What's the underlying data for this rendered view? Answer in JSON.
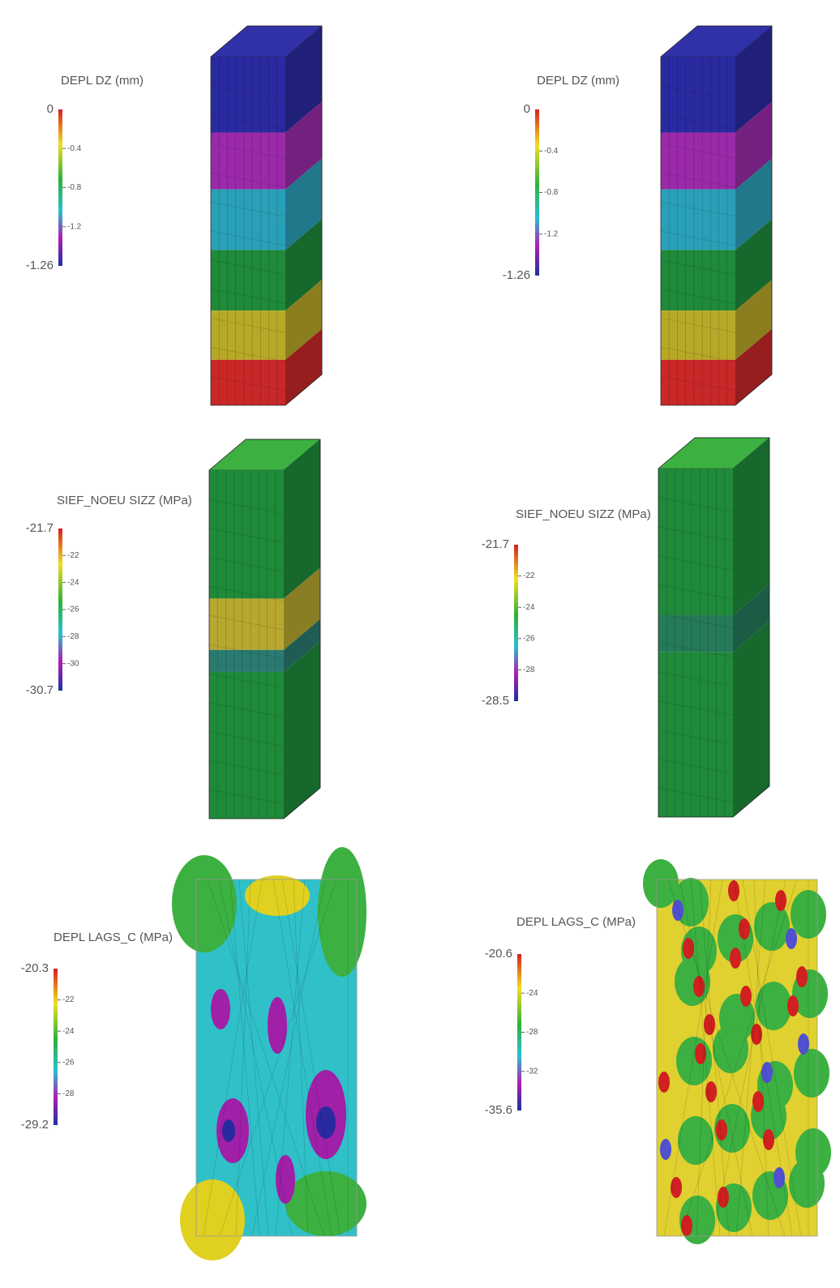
{
  "panels": [
    {
      "title": "DEPL DZ (mm)",
      "max": "0",
      "min": "-1.26",
      "ticks": [
        "-0.4",
        "-0.8",
        "-1.2"
      ]
    },
    {
      "title": "DEPL DZ (mm)",
      "max": "0",
      "min": "-1.26",
      "ticks": [
        "-0.4",
        "-0.8",
        "-1.2"
      ]
    },
    {
      "title": "SIEF_NOEU SIZZ (MPa)",
      "max": "-21.7",
      "min": "-30.7",
      "ticks": [
        "-22",
        "-24",
        "-26",
        "-28",
        "-30"
      ]
    },
    {
      "title": "SIEF_NOEU SIZZ (MPa)",
      "max": "-21.7",
      "min": "-28.5",
      "ticks": [
        "-22",
        "-24",
        "-26",
        "-28"
      ]
    },
    {
      "title": "DEPL LAGS_C (MPa)",
      "max": "-20.3",
      "min": "-29.2",
      "ticks": [
        "-22",
        "-24",
        "-26",
        "-28"
      ]
    },
    {
      "title": "DEPL LAGS_C (MPa)",
      "max": "-20.6",
      "min": "-35.6",
      "ticks": [
        "-24",
        "-28",
        "-32"
      ]
    }
  ]
}
